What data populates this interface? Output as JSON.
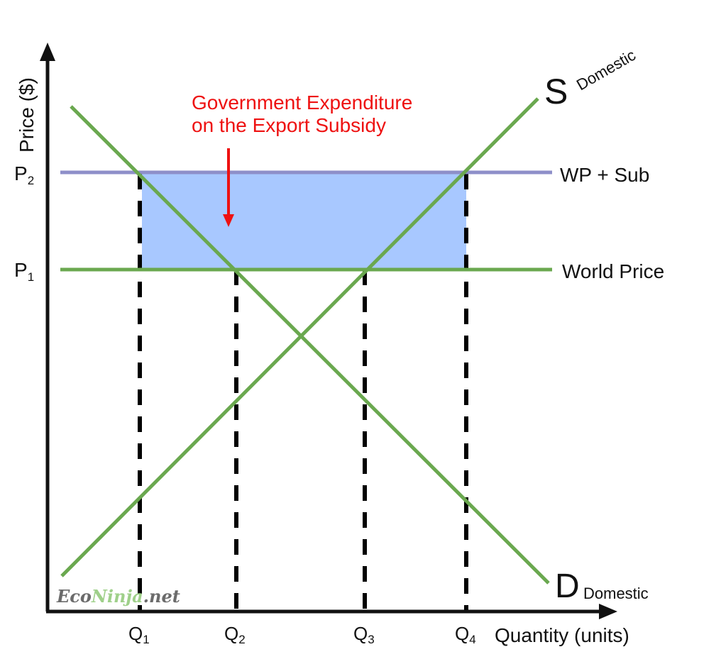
{
  "colors": {
    "axis": "#111111",
    "curve": "#6aa84f",
    "wp_sub_line": "#8e8fc9",
    "subsidy_area": "#a8c8ff",
    "annotation": "#ee1111",
    "guide": "#000000",
    "watermark_dark": "#6b6b6b",
    "watermark_green": "#9fd08a"
  },
  "axes": {
    "y_label": "Price ($)",
    "x_label": "Quantity (units)"
  },
  "price_ticks": [
    {
      "main": "P",
      "sub": "2"
    },
    {
      "main": "P",
      "sub": "1"
    }
  ],
  "quantity_ticks": [
    {
      "main": "Q",
      "sub": "1"
    },
    {
      "main": "Q",
      "sub": "2"
    },
    {
      "main": "Q",
      "sub": "3"
    },
    {
      "main": "Q",
      "sub": "4"
    }
  ],
  "curves": {
    "supply": {
      "main": "S",
      "sub": "Domestic"
    },
    "demand": {
      "main": "D",
      "sub": "Domestic"
    },
    "wp_sub": "WP + Sub",
    "world_price": "World Price"
  },
  "annotation": {
    "line1": "Government Expenditure",
    "line2": "on the Export Subsidy"
  },
  "watermark": {
    "part1": "Eco",
    "part2": "Ninja",
    "part3": ".net"
  }
}
